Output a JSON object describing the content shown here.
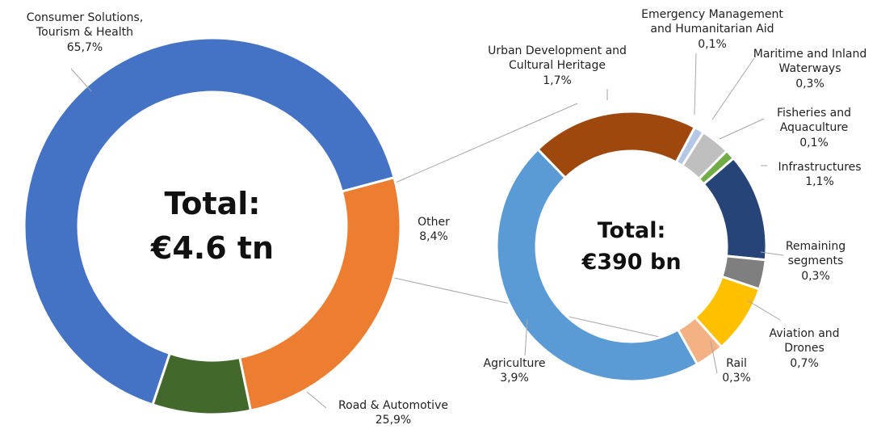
{
  "chart_data": [
    {
      "type": "donut",
      "center_text": "Total:\n€4.6 tn",
      "categories": [
        "Consumer Solutions,\nTourism & Health",
        "Road & Automotive",
        "Other"
      ],
      "values": [
        65.7,
        25.9,
        8.4
      ],
      "value_labels": [
        "65,7%",
        "25,9%",
        "8,4%"
      ],
      "colors": [
        "#4472c4",
        "#ed7d31",
        "#43682b"
      ]
    },
    {
      "type": "donut",
      "center_text": "Total:\n€390 bn",
      "categories": [
        "Urban Development and\nCultural Heritage",
        "Emergency Management\nand Humanitarian Aid",
        "Maritime and Inland\nWaterways",
        "Fisheries and\nAquaculture",
        "Infrastructures",
        "Remaining\nsegments",
        "Aviation and\nDrones",
        "Rail",
        "Agriculture"
      ],
      "values": [
        1.7,
        0.1,
        0.3,
        0.1,
        1.1,
        0.3,
        0.7,
        0.3,
        3.9
      ],
      "value_labels": [
        "1,7%",
        "0,1%",
        "0,3%",
        "0,1%",
        "1,1%",
        "0,3%",
        "0,7%",
        "0,3%",
        "3,9%"
      ],
      "colors": [
        "#9e480e",
        "#b4c7e7",
        "#bfbfbf",
        "#70ad47",
        "#264478",
        "#7f7f7f",
        "#ffc000",
        "#f4b183",
        "#5b9bd5"
      ]
    }
  ]
}
